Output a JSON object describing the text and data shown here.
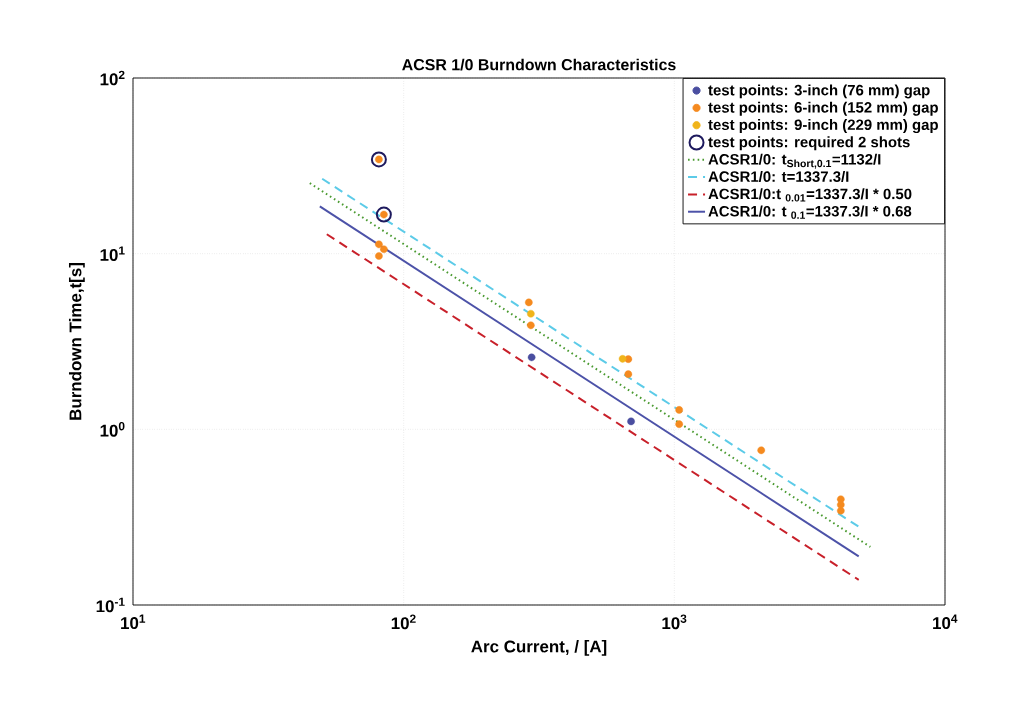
{
  "chart_data": {
    "type": "scatter",
    "title": "ACSR 1/0 Burndown Characteristics",
    "xlabel": "Arc Current, / [A]",
    "ylabel": "Burndown Time,t[s]",
    "log": "xy",
    "grid": true,
    "legend": "top right",
    "xlim": [
      10,
      10000
    ],
    "ylim": [
      0.1,
      100
    ],
    "xticks": [
      {
        "value": 10,
        "label": "10$^{1}$"
      },
      {
        "value": 100,
        "label": "10$^{2}$"
      },
      {
        "value": 1000,
        "label": "10$^{3}$"
      },
      {
        "value": 10000,
        "label": "10$^{4}$"
      }
    ],
    "yticks": [
      {
        "value": 0.1,
        "label": "10$^{-1}$"
      },
      {
        "value": 1,
        "label": "10$^{0}$"
      },
      {
        "value": 10,
        "label": "10$^{1}$"
      },
      {
        "value": 100,
        "label": "10$^{2}$"
      }
    ],
    "series": [
      {
        "name": "test points: 3-inch (76 mm) gap",
        "color": "#4a4ea0",
        "marker": "circle",
        "x": [
          297,
          692
        ],
        "values": [
          2.57,
          1.11
        ]
      },
      {
        "name": "test points: 6-inch (152 mm) gap",
        "color": "#f58a1f",
        "marker": "circle",
        "x": [
          81,
          84.5,
          81,
          84.5,
          81,
          290,
          295,
          676,
          676,
          1042,
          1042,
          2094,
          4121,
          4121,
          4121
        ],
        "values": [
          34.4,
          16.7,
          11.3,
          10.6,
          9.7,
          5.28,
          3.91,
          2.51,
          2.06,
          1.29,
          1.07,
          0.76,
          0.4,
          0.372,
          0.344
        ]
      },
      {
        "name": "test points: 9-inch (229 mm) gap",
        "color": "#f0b41a",
        "marker": "circle",
        "x": [
          295,
          644
        ],
        "values": [
          4.55,
          2.52
        ]
      },
      {
        "name": "test points: required 2 shots",
        "color": "#1e1a5e",
        "marker": "circle",
        "x": [
          81,
          84.5
        ],
        "values": [
          34.4,
          16.7
        ]
      },
      {
        "name": "ACSR1/0: t$_{Short,0.1}$=1132/I",
        "type": "line",
        "marker": "none",
        "line_style": "dotted",
        "color": "#4a9a30",
        "x": [
          45,
          5300
        ],
        "values": [
          25.2,
          0.214
        ]
      },
      {
        "name": "ACSR1/0: t=1337.3/I",
        "type": "line",
        "marker": "none",
        "line_style": "dashed",
        "color": "#5ccbe8",
        "x": [
          50,
          4800
        ],
        "values": [
          26.7,
          0.279
        ]
      },
      {
        "name": "ACSR1/0:t $_{0.01}$=1337.3/I * 0.50",
        "type": "line",
        "marker": "none",
        "line_style": "dashed",
        "color": "#c8202a",
        "x": [
          52,
          4800
        ],
        "values": [
          12.9,
          0.139
        ]
      },
      {
        "name": "ACSR1/0: t $_{0.1}$=1337.3/I * 0.68",
        "type": "line",
        "marker": "none",
        "line_style": "solid",
        "color": "#4c52a8",
        "x": [
          49,
          4800
        ],
        "values": [
          18.6,
          0.189
        ]
      }
    ]
  }
}
